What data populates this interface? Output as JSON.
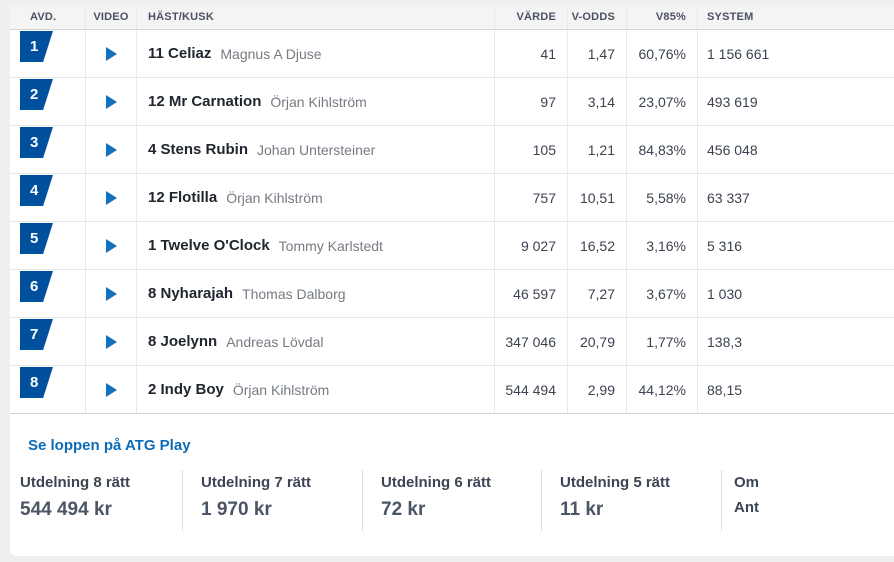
{
  "table": {
    "headers": {
      "avd": "AVD.",
      "video": "VIDEO",
      "horse": "HÄST/KUSK",
      "varde": "VÄRDE",
      "vodds": "V-ODDS",
      "v85": "V85%",
      "system": "SYSTEM"
    },
    "rows": [
      {
        "avd": "1",
        "horse": "11 Celiaz",
        "driver": "Magnus A Djuse",
        "varde": "41",
        "vodds": "1,47",
        "v85": "60,76%",
        "system": "1 156 661"
      },
      {
        "avd": "2",
        "horse": "12 Mr Carnation",
        "driver": "Örjan Kihlström",
        "varde": "97",
        "vodds": "3,14",
        "v85": "23,07%",
        "system": "493 619"
      },
      {
        "avd": "3",
        "horse": "4 Stens Rubin",
        "driver": "Johan Untersteiner",
        "varde": "105",
        "vodds": "1,21",
        "v85": "84,83%",
        "system": "456 048"
      },
      {
        "avd": "4",
        "horse": "12 Flotilla",
        "driver": "Örjan Kihlström",
        "varde": "757",
        "vodds": "10,51",
        "v85": "5,58%",
        "system": "63 337"
      },
      {
        "avd": "5",
        "horse": "1 Twelve O'Clock",
        "driver": "Tommy Karlstedt",
        "varde": "9 027",
        "vodds": "16,52",
        "v85": "3,16%",
        "system": "5 316"
      },
      {
        "avd": "6",
        "horse": "8 Nyharajah",
        "driver": "Thomas Dalborg",
        "varde": "46 597",
        "vodds": "7,27",
        "v85": "3,67%",
        "system": "1 030"
      },
      {
        "avd": "7",
        "horse": "8 Joelynn",
        "driver": "Andreas Lövdal",
        "varde": "347 046",
        "vodds": "20,79",
        "v85": "1,77%",
        "system": "138,3"
      },
      {
        "avd": "8",
        "horse": "2 Indy Boy",
        "driver": "Örjan Kihlström",
        "varde": "544 494",
        "vodds": "2,99",
        "v85": "44,12%",
        "system": "88,15"
      }
    ]
  },
  "links": {
    "atg_play": "Se loppen på ATG Play"
  },
  "payouts": [
    {
      "label": "Utdelning 8 rätt",
      "value": "544 494 kr"
    },
    {
      "label": "Utdelning 7 rätt",
      "value": "1 970 kr"
    },
    {
      "label": "Utdelning 6 rätt",
      "value": "72 kr"
    },
    {
      "label": "Utdelning 5 rätt",
      "value": "11 kr"
    }
  ],
  "payout_truncated": {
    "line1": "Om",
    "line2": "Ant"
  },
  "icons": {
    "play": "play-triangle"
  },
  "colors": {
    "brand_blue": "#00509e",
    "play_blue": "#1371be",
    "link_blue": "#0d6cb8",
    "page_bg": "#efeff0",
    "header_bg": "#f4f4f5",
    "text_dark": "#20262f",
    "text_muted": "#757b83",
    "value_text": "#3b4350"
  }
}
